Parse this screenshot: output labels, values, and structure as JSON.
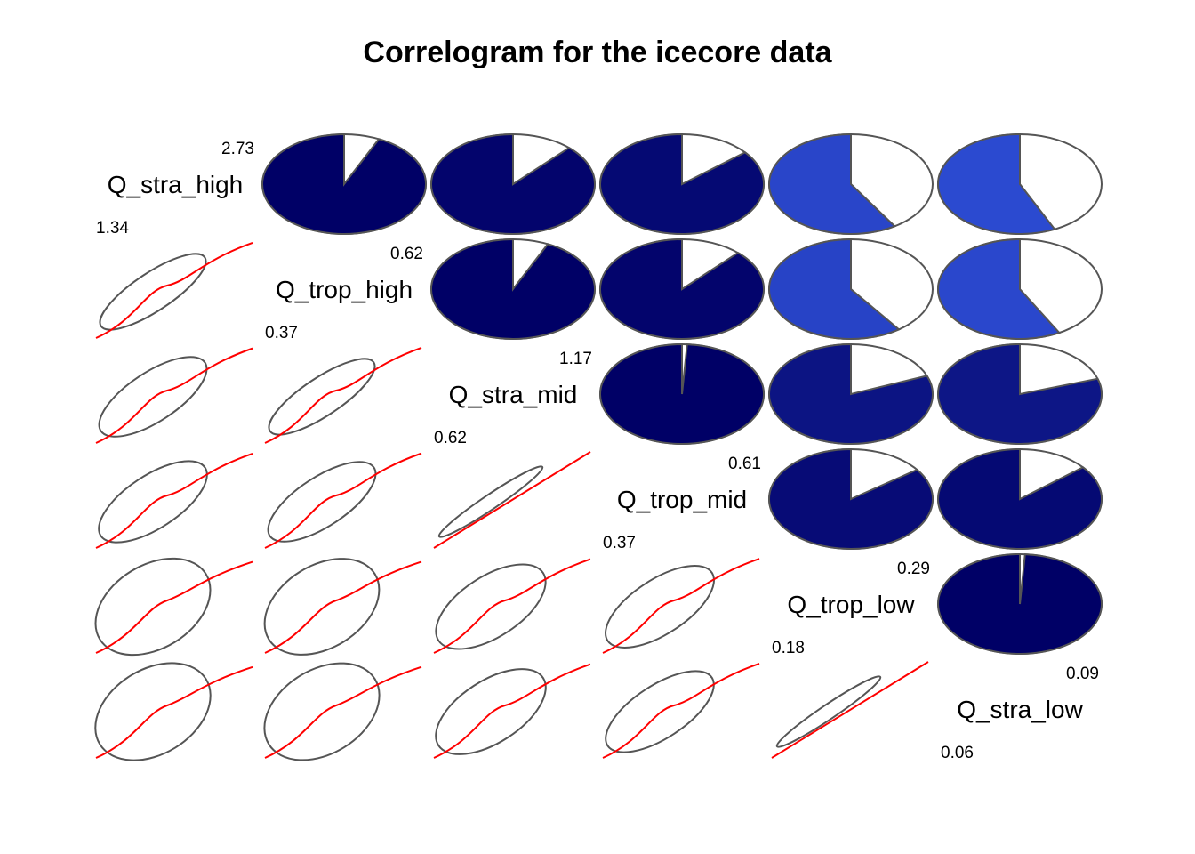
{
  "chart_data": {
    "type": "correlogram",
    "title": "Correlogram for the icecore data",
    "variables": [
      "Q_stra_high",
      "Q_trop_high",
      "Q_stra_mid",
      "Q_trop_mid",
      "Q_trop_low",
      "Q_stra_low"
    ],
    "ranges": [
      {
        "max": "2.73",
        "min": "1.34"
      },
      {
        "max": "0.62",
        "min": "0.37"
      },
      {
        "max": "1.17",
        "min": "0.62"
      },
      {
        "max": "0.61",
        "min": "0.37"
      },
      {
        "max": "0.29",
        "min": "0.18"
      },
      {
        "max": "0.09",
        "min": "0.06"
      }
    ],
    "correlations": [
      [
        1.0,
        0.93,
        0.88,
        0.86,
        0.59,
        0.57
      ],
      [
        0.93,
        1.0,
        0.93,
        0.88,
        0.6,
        0.58
      ],
      [
        0.88,
        0.93,
        1.0,
        0.99,
        0.81,
        0.8
      ],
      [
        0.86,
        0.88,
        0.99,
        1.0,
        0.85,
        0.86
      ],
      [
        0.59,
        0.6,
        0.81,
        0.85,
        1.0,
        0.99
      ],
      [
        0.57,
        0.58,
        0.8,
        0.86,
        0.99,
        1.0
      ]
    ],
    "upper_panel": "pie",
    "lower_panel": "ellipse",
    "colors": {
      "pie_strong": "#000066",
      "pie_weak": "#2E4ED6",
      "outline": "#555555",
      "fit_line": "#FF0000"
    }
  }
}
